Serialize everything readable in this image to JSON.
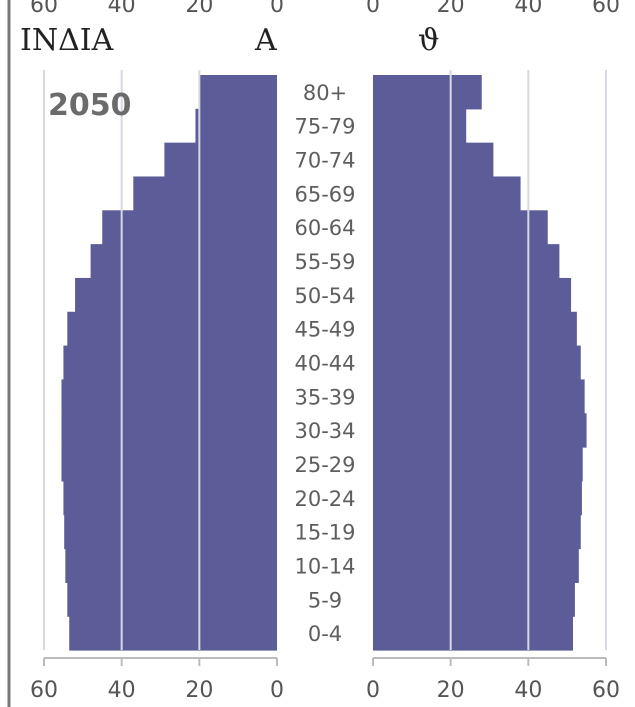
{
  "header": {
    "country": "INΔIA",
    "left_symbol": "A",
    "right_symbol": "ϑ"
  },
  "chart_data": {
    "type": "bar",
    "orientation": "horizontal",
    "layout": "population-pyramid",
    "year_label": "2050",
    "categories": [
      "0-4",
      "5-9",
      "10-14",
      "15-19",
      "20-24",
      "25-29",
      "30-34",
      "35-39",
      "40-44",
      "45-49",
      "50-54",
      "55-59",
      "60-64",
      "65-69",
      "70-74",
      "75-79",
      "80+"
    ],
    "series": [
      {
        "side": "left",
        "values": [
          53.5,
          54,
          54.5,
          54.8,
          55,
          55.5,
          55.5,
          55.5,
          55,
          54,
          52,
          48,
          45,
          37,
          29,
          21,
          20
        ]
      },
      {
        "side": "right",
        "values": [
          51.5,
          52,
          53,
          53.5,
          53.8,
          54,
          55,
          54.5,
          53.5,
          52.5,
          51,
          48,
          45,
          38,
          31,
          24,
          28
        ]
      }
    ],
    "x_ticks": [
      60,
      40,
      20,
      0
    ],
    "xlim": [
      0,
      60
    ],
    "grid": true,
    "color": "#5c5d98"
  }
}
